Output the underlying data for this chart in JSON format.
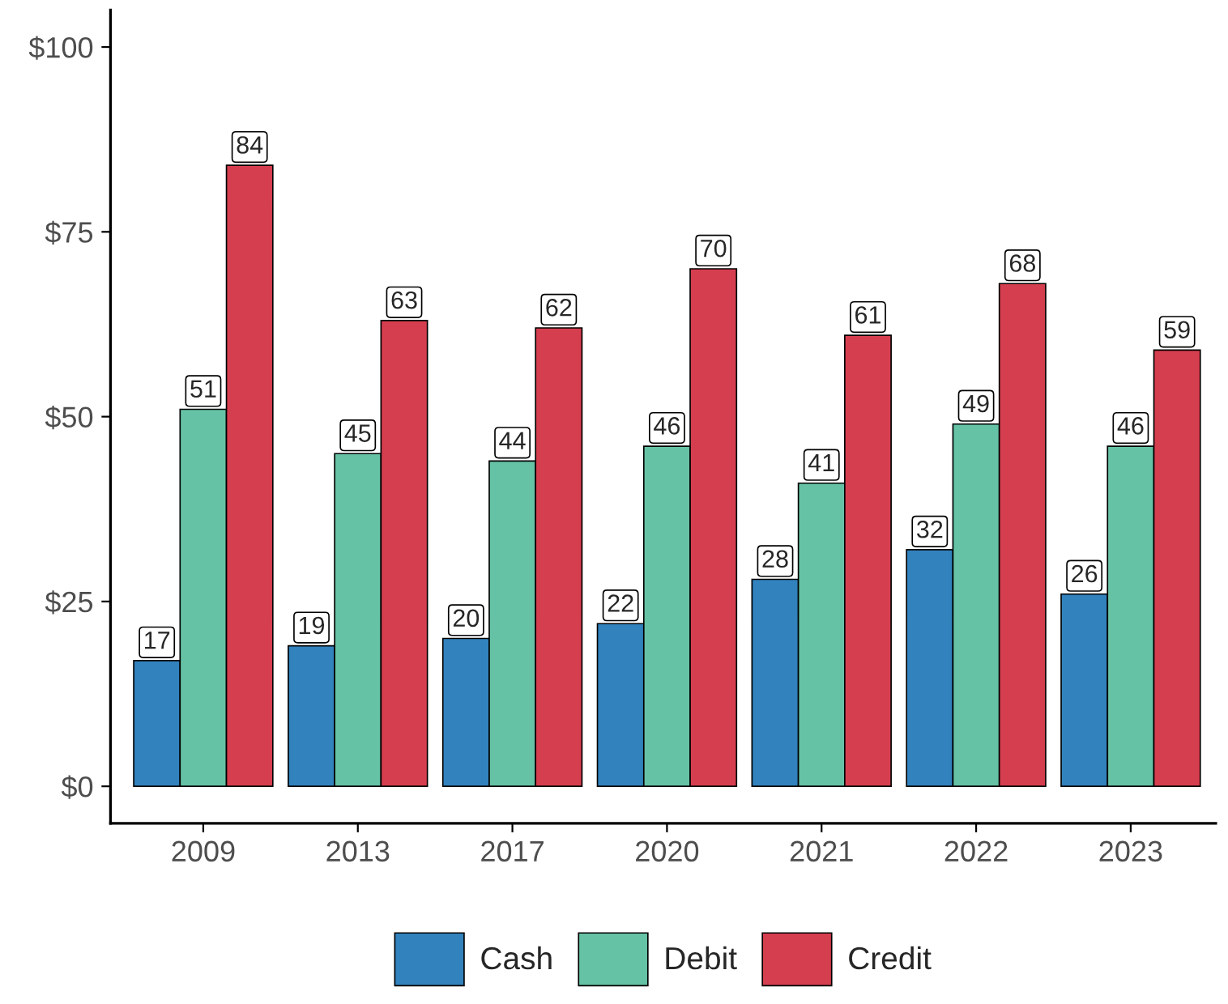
{
  "chart_data": {
    "type": "bar",
    "categories": [
      "2009",
      "2013",
      "2017",
      "2020",
      "2021",
      "2022",
      "2023"
    ],
    "series": [
      {
        "name": "Cash",
        "color": "#3182bd",
        "values": [
          17,
          19,
          20,
          22,
          28,
          32,
          26
        ]
      },
      {
        "name": "Debit",
        "color": "#66c2a5",
        "values": [
          51,
          45,
          44,
          46,
          41,
          49,
          46
        ]
      },
      {
        "name": "Credit",
        "color": "#d53e4f",
        "values": [
          84,
          63,
          62,
          70,
          61,
          68,
          59
        ]
      }
    ],
    "ylim": [
      -5,
      105
    ],
    "yticks": [
      {
        "value": 0,
        "label": "$0"
      },
      {
        "value": 25,
        "label": "$25"
      },
      {
        "value": 50,
        "label": "$50"
      },
      {
        "value": 75,
        "label": "$75"
      },
      {
        "value": 100,
        "label": "$100"
      }
    ],
    "data_labels": true,
    "grid": false,
    "legend": "bottom"
  }
}
